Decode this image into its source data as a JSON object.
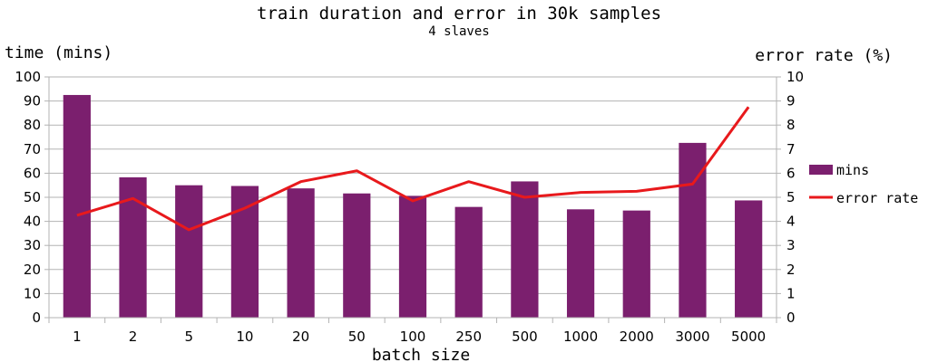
{
  "chart_data": {
    "type": "bar",
    "title": "train duration and error in 30k samples",
    "subtitle": "4 slaves",
    "xlabel": "batch size",
    "ylabel_left": "time (mins)",
    "ylabel_right": "error rate (%)",
    "categories": [
      "1",
      "2",
      "5",
      "10",
      "20",
      "50",
      "100",
      "250",
      "500",
      "1000",
      "2000",
      "3000",
      "5000"
    ],
    "ylim_left": [
      0,
      100
    ],
    "ylim_right": [
      0,
      10
    ],
    "yticks_left": [
      "0",
      "10",
      "20",
      "30",
      "40",
      "50",
      "60",
      "70",
      "80",
      "90",
      "100"
    ],
    "yticks_right": [
      "0",
      "1",
      "2",
      "3",
      "4",
      "5",
      "6",
      "7",
      "8",
      "9",
      "10"
    ],
    "grid": true,
    "legend_position": "right",
    "series": [
      {
        "name": "mins",
        "type": "bar",
        "axis": "left",
        "color": "#7b1f6e",
        "values": [
          92.5,
          58.3,
          55.0,
          54.7,
          53.7,
          51.6,
          50.6,
          46.0,
          56.6,
          45.0,
          44.5,
          72.6,
          48.7
        ]
      },
      {
        "name": "error rate",
        "type": "line",
        "axis": "right",
        "color": "#e8191c",
        "values": [
          4.25,
          4.95,
          3.65,
          4.55,
          5.65,
          6.1,
          4.85,
          5.65,
          5.0,
          5.2,
          5.25,
          5.55,
          8.75
        ]
      }
    ]
  }
}
